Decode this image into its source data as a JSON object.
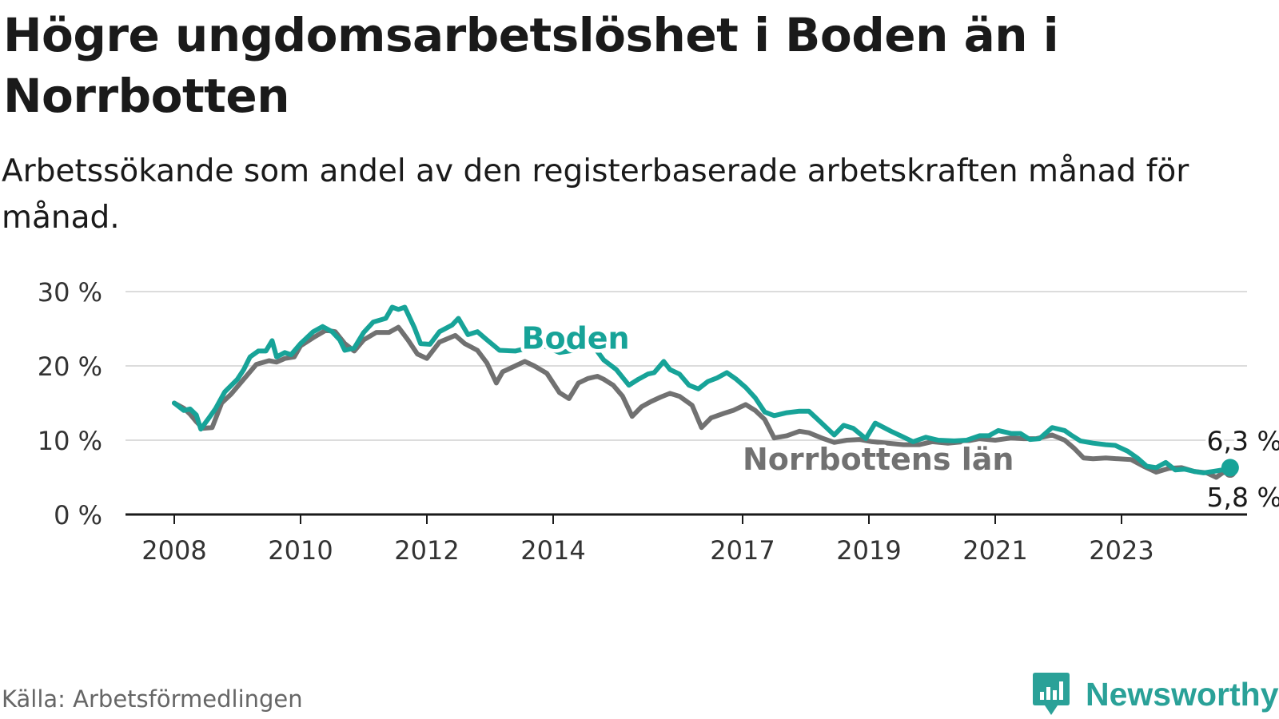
{
  "title": "Högre ungdomsarbetslöshet i Boden än i Norrbotten",
  "subtitle": "Arbetssökande som andel av den registerbaserade arbetskraften månad för månad.",
  "source": "Källa: Arbetsförmedlingen",
  "brand": {
    "name": "Newsworthy",
    "icon": "newsworthy-chart-bubble-icon"
  },
  "colors": {
    "boden": "#17a398",
    "norrbotten": "#717171",
    "grid": "#dcdcdc",
    "axis": "#1a1a1a",
    "brand": "#2aa198"
  },
  "chart_data": {
    "type": "line",
    "title": "Högre ungdomsarbetslöshet i Boden än i Norrbotten",
    "xlabel": "",
    "ylabel": "",
    "x_range": [
      2008,
      2024
    ],
    "ylim": [
      0,
      30
    ],
    "y_ticks": [
      0,
      10,
      20,
      30
    ],
    "y_tick_labels": [
      "0 %",
      "10 %",
      "20 %",
      "30 %"
    ],
    "x_ticks": [
      2008,
      2010,
      2012,
      2014,
      2017,
      2019,
      2021,
      2023
    ],
    "x_tick_labels": [
      "2008",
      "2010",
      "2012",
      "2014",
      "2017",
      "2019",
      "2021",
      "2023"
    ],
    "grid": true,
    "series": [
      {
        "name": "Boden",
        "key": "boden",
        "series_label": "Boden",
        "end_label": "6,3 %",
        "points": [
          [
            2008.0,
            15.0
          ],
          [
            2008.15,
            14.0
          ],
          [
            2008.25,
            14.2
          ],
          [
            2008.35,
            13.4
          ],
          [
            2008.42,
            11.5
          ],
          [
            2008.55,
            13.0
          ],
          [
            2008.65,
            14.2
          ],
          [
            2008.8,
            16.5
          ],
          [
            2009.0,
            18.2
          ],
          [
            2009.1,
            19.5
          ],
          [
            2009.2,
            21.2
          ],
          [
            2009.33,
            22.0
          ],
          [
            2009.45,
            22.0
          ],
          [
            2009.55,
            23.4
          ],
          [
            2009.62,
            21.2
          ],
          [
            2009.75,
            21.8
          ],
          [
            2009.85,
            21.5
          ],
          [
            2010.0,
            23.0
          ],
          [
            2010.2,
            24.6
          ],
          [
            2010.35,
            25.3
          ],
          [
            2010.5,
            24.6
          ],
          [
            2010.62,
            23.5
          ],
          [
            2010.7,
            22.1
          ],
          [
            2010.85,
            22.4
          ],
          [
            2011.0,
            24.5
          ],
          [
            2011.15,
            25.9
          ],
          [
            2011.35,
            26.4
          ],
          [
            2011.45,
            27.9
          ],
          [
            2011.55,
            27.6
          ],
          [
            2011.65,
            27.9
          ],
          [
            2011.8,
            25.2
          ],
          [
            2011.9,
            23.0
          ],
          [
            2012.05,
            22.9
          ],
          [
            2012.2,
            24.6
          ],
          [
            2012.4,
            25.5
          ],
          [
            2012.5,
            26.4
          ],
          [
            2012.65,
            24.2
          ],
          [
            2012.8,
            24.6
          ],
          [
            2012.95,
            23.5
          ],
          [
            2013.15,
            22.1
          ],
          [
            2013.4,
            22.0
          ],
          [
            2013.65,
            22.5
          ],
          [
            2013.85,
            22.7
          ],
          [
            2014.1,
            21.8
          ],
          [
            2014.4,
            22.2
          ],
          [
            2014.6,
            23.1
          ],
          [
            2014.8,
            20.8
          ],
          [
            2015.0,
            19.5
          ],
          [
            2015.2,
            17.4
          ],
          [
            2015.35,
            18.2
          ],
          [
            2015.5,
            18.9
          ],
          [
            2015.6,
            19.1
          ],
          [
            2015.75,
            20.6
          ],
          [
            2015.85,
            19.5
          ],
          [
            2016.0,
            18.9
          ],
          [
            2016.15,
            17.4
          ],
          [
            2016.3,
            16.9
          ],
          [
            2016.45,
            17.9
          ],
          [
            2016.6,
            18.4
          ],
          [
            2016.75,
            19.1
          ],
          [
            2016.9,
            18.2
          ],
          [
            2017.05,
            17.1
          ],
          [
            2017.2,
            15.7
          ],
          [
            2017.35,
            13.8
          ],
          [
            2017.5,
            13.3
          ],
          [
            2017.7,
            13.7
          ],
          [
            2017.9,
            13.9
          ],
          [
            2018.05,
            13.9
          ],
          [
            2018.25,
            12.3
          ],
          [
            2018.45,
            10.7
          ],
          [
            2018.6,
            12.0
          ],
          [
            2018.75,
            11.6
          ],
          [
            2018.95,
            10.2
          ],
          [
            2019.1,
            12.3
          ],
          [
            2019.35,
            11.2
          ],
          [
            2019.5,
            10.6
          ],
          [
            2019.7,
            9.8
          ],
          [
            2019.9,
            10.4
          ],
          [
            2020.1,
            10.0
          ],
          [
            2020.35,
            9.9
          ],
          [
            2020.55,
            10.0
          ],
          [
            2020.75,
            10.6
          ],
          [
            2020.9,
            10.6
          ],
          [
            2021.05,
            11.3
          ],
          [
            2021.25,
            10.9
          ],
          [
            2021.4,
            10.9
          ],
          [
            2021.55,
            10.1
          ],
          [
            2021.7,
            10.2
          ],
          [
            2021.9,
            11.7
          ],
          [
            2022.1,
            11.3
          ],
          [
            2022.2,
            10.7
          ],
          [
            2022.35,
            9.9
          ],
          [
            2022.55,
            9.6
          ],
          [
            2022.75,
            9.4
          ],
          [
            2022.9,
            9.3
          ],
          [
            2023.1,
            8.5
          ],
          [
            2023.25,
            7.6
          ],
          [
            2023.4,
            6.5
          ],
          [
            2023.55,
            6.3
          ],
          [
            2023.7,
            7.0
          ],
          [
            2023.85,
            6.0
          ],
          [
            2024.0,
            6.1
          ],
          [
            2024.15,
            5.8
          ],
          [
            2024.3,
            5.6
          ],
          [
            2024.45,
            5.8
          ],
          [
            2024.6,
            6.0
          ],
          [
            2024.72,
            6.3
          ]
        ]
      },
      {
        "name": "Norrbottens län",
        "key": "norrbotten",
        "series_label": "Norrbottens län",
        "end_label": "5,8 %",
        "points": [
          [
            2008.0,
            15.0
          ],
          [
            2008.15,
            14.3
          ],
          [
            2008.25,
            13.5
          ],
          [
            2008.35,
            12.5
          ],
          [
            2008.45,
            11.6
          ],
          [
            2008.6,
            11.7
          ],
          [
            2008.75,
            15.0
          ],
          [
            2008.9,
            16.2
          ],
          [
            2009.1,
            18.2
          ],
          [
            2009.3,
            20.2
          ],
          [
            2009.5,
            20.7
          ],
          [
            2009.62,
            20.5
          ],
          [
            2009.75,
            21.0
          ],
          [
            2009.9,
            21.2
          ],
          [
            2010.0,
            22.7
          ],
          [
            2010.2,
            23.8
          ],
          [
            2010.4,
            24.8
          ],
          [
            2010.55,
            24.6
          ],
          [
            2010.7,
            23.0
          ],
          [
            2010.85,
            22.0
          ],
          [
            2011.0,
            23.5
          ],
          [
            2011.2,
            24.5
          ],
          [
            2011.4,
            24.5
          ],
          [
            2011.55,
            25.2
          ],
          [
            2011.7,
            23.5
          ],
          [
            2011.85,
            21.6
          ],
          [
            2012.0,
            21.0
          ],
          [
            2012.2,
            23.2
          ],
          [
            2012.45,
            24.1
          ],
          [
            2012.6,
            23.0
          ],
          [
            2012.8,
            22.1
          ],
          [
            2012.95,
            20.4
          ],
          [
            2013.1,
            17.7
          ],
          [
            2013.2,
            19.2
          ],
          [
            2013.35,
            19.8
          ],
          [
            2013.55,
            20.6
          ],
          [
            2013.7,
            20.0
          ],
          [
            2013.9,
            19.0
          ],
          [
            2014.1,
            16.4
          ],
          [
            2014.25,
            15.6
          ],
          [
            2014.4,
            17.7
          ],
          [
            2014.55,
            18.3
          ],
          [
            2014.7,
            18.6
          ],
          [
            2014.8,
            18.2
          ],
          [
            2014.95,
            17.4
          ],
          [
            2015.1,
            15.9
          ],
          [
            2015.25,
            13.2
          ],
          [
            2015.4,
            14.5
          ],
          [
            2015.55,
            15.2
          ],
          [
            2015.7,
            15.8
          ],
          [
            2015.85,
            16.3
          ],
          [
            2016.0,
            15.9
          ],
          [
            2016.2,
            14.7
          ],
          [
            2016.35,
            11.7
          ],
          [
            2016.5,
            13.0
          ],
          [
            2016.7,
            13.6
          ],
          [
            2016.85,
            14.0
          ],
          [
            2017.05,
            14.8
          ],
          [
            2017.2,
            14.0
          ],
          [
            2017.35,
            12.8
          ],
          [
            2017.5,
            10.3
          ],
          [
            2017.7,
            10.6
          ],
          [
            2017.9,
            11.2
          ],
          [
            2018.05,
            11.0
          ],
          [
            2018.25,
            10.3
          ],
          [
            2018.45,
            9.7
          ],
          [
            2018.65,
            10.0
          ],
          [
            2018.85,
            10.1
          ],
          [
            2019.05,
            9.8
          ],
          [
            2019.3,
            9.6
          ],
          [
            2019.55,
            9.4
          ],
          [
            2019.8,
            9.4
          ],
          [
            2020.0,
            9.8
          ],
          [
            2020.25,
            9.6
          ],
          [
            2020.5,
            9.8
          ],
          [
            2020.75,
            10.2
          ],
          [
            2021.0,
            10.0
          ],
          [
            2021.25,
            10.3
          ],
          [
            2021.45,
            10.2
          ],
          [
            2021.65,
            10.2
          ],
          [
            2021.9,
            10.7
          ],
          [
            2022.1,
            10.0
          ],
          [
            2022.25,
            8.9
          ],
          [
            2022.4,
            7.6
          ],
          [
            2022.55,
            7.5
          ],
          [
            2022.75,
            7.6
          ],
          [
            2022.95,
            7.5
          ],
          [
            2023.15,
            7.4
          ],
          [
            2023.35,
            6.5
          ],
          [
            2023.55,
            5.7
          ],
          [
            2023.75,
            6.2
          ],
          [
            2023.95,
            6.3
          ],
          [
            2024.15,
            5.8
          ],
          [
            2024.35,
            5.6
          ],
          [
            2024.5,
            5.0
          ],
          [
            2024.6,
            5.6
          ],
          [
            2024.72,
            5.8
          ]
        ]
      }
    ]
  }
}
